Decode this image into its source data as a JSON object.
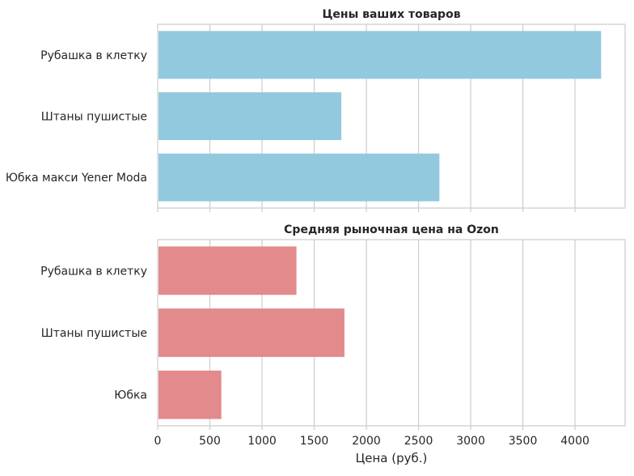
{
  "chart_data": [
    {
      "type": "bar",
      "orientation": "horizontal",
      "title": "Цены ваших товаров",
      "categories": [
        "Рубашка в клетку",
        "Штаны пушистые",
        "Юбка макси Yener Moda"
      ],
      "values": [
        4250,
        1760,
        2700
      ],
      "color": "#92c9df",
      "xlim": [
        0,
        4480
      ],
      "grid": true
    },
    {
      "type": "bar",
      "orientation": "horizontal",
      "title": "Средняя рыночная цена на Ozon",
      "categories": [
        "Рубашка в клетку",
        "Штаны пушистые",
        "Юбка"
      ],
      "values": [
        1330,
        1790,
        610
      ],
      "color": "#e28a8c",
      "xlim": [
        0,
        4480
      ],
      "xlabel": "Цена (руб.)",
      "xticks": [
        0,
        500,
        1000,
        1500,
        2000,
        2500,
        3000,
        3500,
        4000
      ],
      "grid": true
    }
  ]
}
